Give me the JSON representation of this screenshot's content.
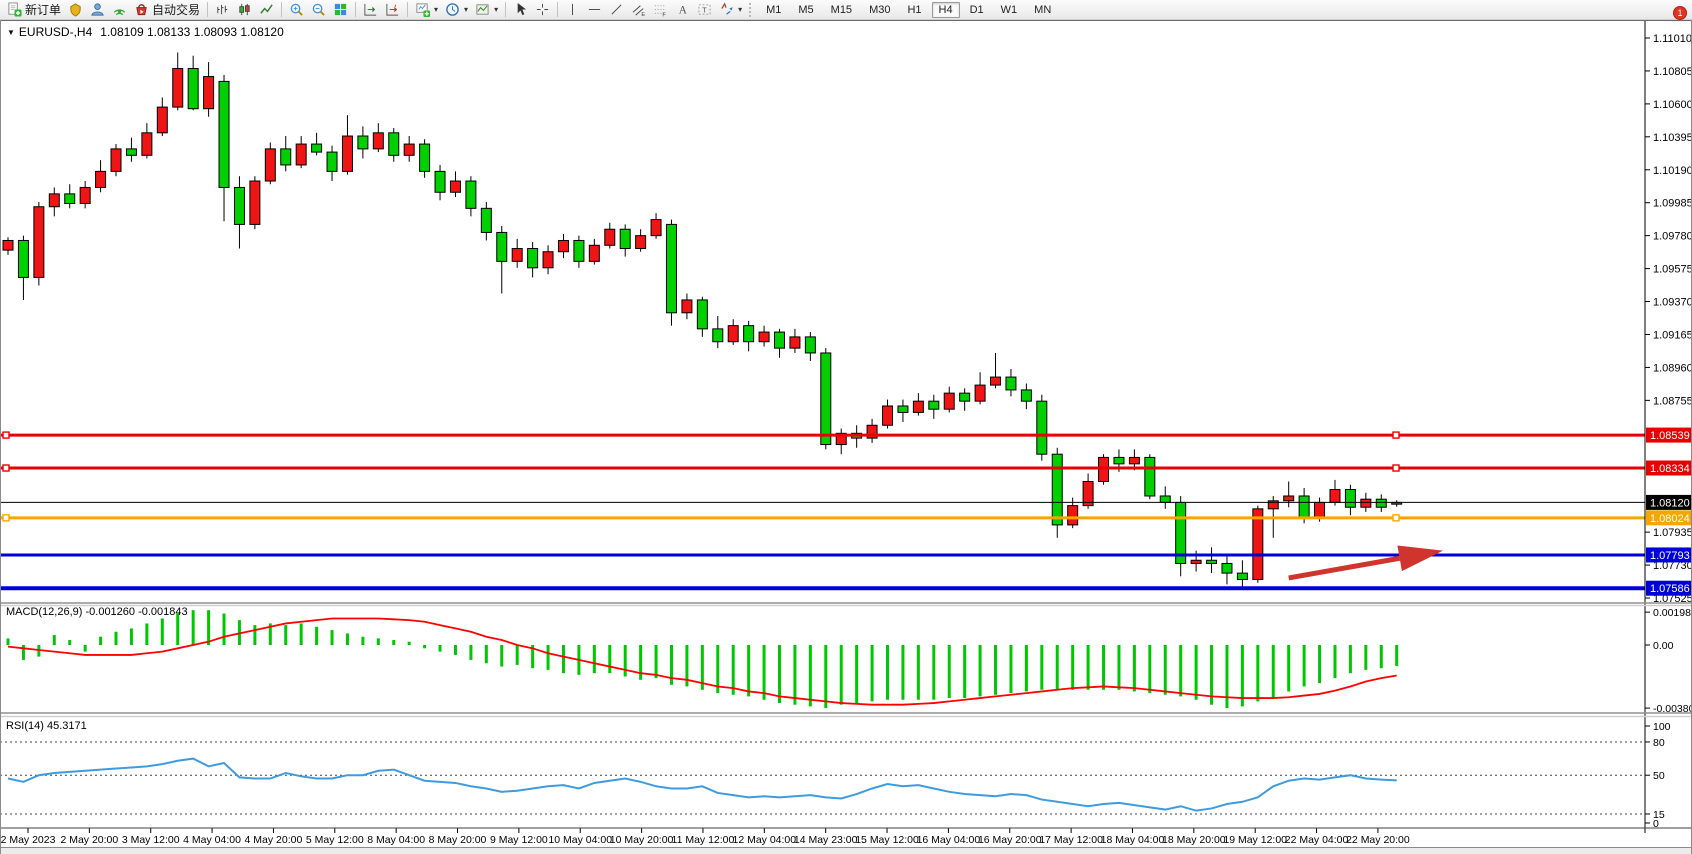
{
  "toolbar": {
    "groups": [
      {
        "items": [
          {
            "name": "new-order-button",
            "icon": "new-order-icon",
            "label": "新订单"
          },
          {
            "name": "market-button",
            "icon": "market-icon"
          },
          {
            "name": "metaeditor-button",
            "icon": "metaeditor-icon"
          },
          {
            "name": "signals-button",
            "icon": "signals-icon"
          },
          {
            "name": "autotrading-button",
            "icon": "autotrading-icon",
            "label": "自动交易"
          }
        ]
      },
      {
        "items": [
          {
            "name": "bar-chart-button",
            "icon": "bar-chart-icon"
          },
          {
            "name": "candlestick-button",
            "icon": "candles-icon"
          },
          {
            "name": "line-chart-button",
            "icon": "line-chart-icon"
          }
        ]
      },
      {
        "items": [
          {
            "name": "zoom-in-button",
            "icon": "zoom-in-icon"
          },
          {
            "name": "zoom-out-button",
            "icon": "zoom-out-icon"
          },
          {
            "name": "tile-windows-button",
            "icon": "tile-windows-icon"
          }
        ]
      },
      {
        "items": [
          {
            "name": "auto-scroll-button",
            "icon": "auto-scroll-icon"
          },
          {
            "name": "chart-shift-button",
            "icon": "chart-shift-icon"
          }
        ]
      },
      {
        "items": [
          {
            "name": "new-chart-button",
            "icon": "new-chart-icon",
            "dropdown": true
          },
          {
            "name": "periods-button",
            "icon": "periods-icon",
            "dropdown": true
          },
          {
            "name": "templates-button",
            "icon": "template-icon",
            "dropdown": true
          }
        ]
      },
      {
        "items": [
          {
            "name": "cursor-button",
            "icon": "cursor-icon"
          },
          {
            "name": "crosshair-button",
            "icon": "crosshair-icon"
          }
        ]
      },
      {
        "items": [
          {
            "name": "vertical-line-button",
            "icon": "vline-icon"
          },
          {
            "name": "horizontal-line-button",
            "icon": "hline-icon"
          },
          {
            "name": "trendline-button",
            "icon": "trendline-icon"
          },
          {
            "name": "equidistant-channel-button",
            "icon": "channel-icon"
          },
          {
            "name": "fibonacci-button",
            "icon": "fibo-icon"
          },
          {
            "name": "text-button",
            "icon": "text-icon"
          },
          {
            "name": "text-label-button",
            "icon": "textlabel-icon"
          },
          {
            "name": "arrows-button",
            "icon": "arrows-icon",
            "dropdown": true
          }
        ]
      }
    ],
    "timeframes": [
      "M1",
      "M5",
      "M15",
      "M30",
      "H1",
      "H4",
      "D1",
      "W1",
      "MN"
    ],
    "active_timeframe": "H4",
    "right_icons": [
      {
        "name": "search-button",
        "icon": "search-icon"
      },
      {
        "name": "chat-button",
        "icon": "chat-icon",
        "badge": "1"
      }
    ]
  },
  "chart": {
    "symbol_period": "EURUSD-,H4",
    "ohlc_text": "1.08109 1.08133 1.08093 1.08120",
    "collapse_glyph": "▼"
  },
  "indicators": {
    "macd": {
      "title": "MACD(12,26,9)",
      "values": "-0.001260 -0.001843"
    },
    "rsi": {
      "title": "RSI(14)",
      "value": "45.3171"
    }
  },
  "chart_data": {
    "type": "candlestick",
    "symbol": "EURUSD-",
    "timeframe": "H4",
    "start_time": "2 May 2023 00:00",
    "last_ohlc": [
      1.08109,
      1.08133,
      1.08093,
      1.0812
    ],
    "price_ticks": [
      1.1101,
      1.10805,
      1.106,
      1.10395,
      1.1019,
      1.09985,
      1.0978,
      1.09575,
      1.0937,
      1.09165,
      1.0896,
      1.08755,
      1.07935,
      1.0773,
      1.07525
    ],
    "levels": [
      {
        "price": 1.08539,
        "label": "1.08539",
        "color": "#e60000",
        "width": 3,
        "handles": true
      },
      {
        "price": 1.08334,
        "label": "1.08334",
        "color": "#e60000",
        "width": 3,
        "handles": true
      },
      {
        "price": 1.0812,
        "label": "1.08120",
        "color": "#000000",
        "width": 1,
        "handles": false
      },
      {
        "price": 1.08024,
        "label": "1.08024",
        "color": "#f7a600",
        "width": 3,
        "handles": true
      },
      {
        "price": 1.07793,
        "label": "1.07793",
        "color": "#0000d8",
        "width": 3,
        "handles": false
      },
      {
        "price": 1.07586,
        "label": "1.07586",
        "color": "#0000d8",
        "width": 4,
        "handles": false
      }
    ],
    "candles": [
      [
        1.0969,
        1.0977,
        1.0966,
        1.0975
      ],
      [
        1.0975,
        1.0978,
        1.0938,
        1.0952
      ],
      [
        1.0952,
        1.0999,
        1.0947,
        1.0996
      ],
      [
        1.0996,
        1.1008,
        1.099,
        1.1004
      ],
      [
        1.1004,
        1.101,
        1.0995,
        1.0998
      ],
      [
        1.0998,
        1.1012,
        1.0995,
        1.1008
      ],
      [
        1.1008,
        1.1025,
        1.1005,
        1.1018
      ],
      [
        1.1018,
        1.1035,
        1.1015,
        1.1032
      ],
      [
        1.1032,
        1.1039,
        1.1024,
        1.1028
      ],
      [
        1.1028,
        1.1048,
        1.1026,
        1.1042
      ],
      [
        1.1042,
        1.1064,
        1.104,
        1.1058
      ],
      [
        1.1058,
        1.1092,
        1.1056,
        1.1082
      ],
      [
        1.1082,
        1.109,
        1.1056,
        1.1057
      ],
      [
        1.1057,
        1.1086,
        1.1052,
        1.1077
      ],
      [
        1.1074,
        1.1078,
        1.0987,
        1.1008
      ],
      [
        1.1008,
        1.1015,
        1.097,
        1.0985
      ],
      [
        1.0985,
        1.1015,
        1.0982,
        1.1012
      ],
      [
        1.1012,
        1.1036,
        1.101,
        1.1032
      ],
      [
        1.1032,
        1.104,
        1.1018,
        1.1022
      ],
      [
        1.1022,
        1.104,
        1.102,
        1.1035
      ],
      [
        1.1035,
        1.1042,
        1.1028,
        1.103
      ],
      [
        1.103,
        1.1034,
        1.1012,
        1.1018
      ],
      [
        1.1018,
        1.1053,
        1.1016,
        1.104
      ],
      [
        1.104,
        1.1046,
        1.1026,
        1.1032
      ],
      [
        1.1032,
        1.1048,
        1.103,
        1.1042
      ],
      [
        1.1042,
        1.1045,
        1.1024,
        1.1028
      ],
      [
        1.1028,
        1.104,
        1.1024,
        1.1035
      ],
      [
        1.1035,
        1.1038,
        1.1014,
        1.1018
      ],
      [
        1.1018,
        1.1022,
        1.1,
        1.1005
      ],
      [
        1.1005,
        1.1018,
        1.1002,
        1.1012
      ],
      [
        1.1012,
        1.1015,
        1.099,
        1.0995
      ],
      [
        1.0995,
        1.0999,
        1.0975,
        1.098
      ],
      [
        1.098,
        1.0984,
        1.0942,
        1.0962
      ],
      [
        1.0962,
        1.0976,
        1.0958,
        1.097
      ],
      [
        1.097,
        1.0974,
        1.0952,
        1.0958
      ],
      [
        1.0958,
        1.0972,
        1.0954,
        1.0968
      ],
      [
        1.0968,
        1.0979,
        1.0964,
        1.0975
      ],
      [
        1.0975,
        1.0978,
        1.0958,
        1.0962
      ],
      [
        1.0962,
        1.0976,
        1.096,
        1.0972
      ],
      [
        1.0972,
        1.0986,
        1.097,
        1.0982
      ],
      [
        1.0982,
        1.0985,
        1.0965,
        1.097
      ],
      [
        1.097,
        1.0982,
        1.0968,
        1.0978
      ],
      [
        1.0978,
        1.0992,
        1.0976,
        1.0988
      ],
      [
        1.0985,
        1.0988,
        1.0922,
        1.093
      ],
      [
        1.093,
        1.0942,
        1.0926,
        1.0938
      ],
      [
        1.0938,
        1.094,
        1.0915,
        1.092
      ],
      [
        1.092,
        1.0928,
        1.0908,
        1.0912
      ],
      [
        1.0912,
        1.0926,
        1.091,
        1.0922
      ],
      [
        1.0922,
        1.0925,
        1.0906,
        1.0912
      ],
      [
        1.0912,
        1.0922,
        1.0909,
        1.0918
      ],
      [
        1.0918,
        1.092,
        1.0902,
        1.0908
      ],
      [
        1.0908,
        1.092,
        1.0905,
        1.0915
      ],
      [
        1.0915,
        1.0918,
        1.09,
        1.0905
      ],
      [
        1.0905,
        1.0908,
        1.0845,
        1.0848
      ],
      [
        1.0848,
        1.0858,
        1.0842,
        1.0855
      ],
      [
        1.0855,
        1.086,
        1.0846,
        1.0852
      ],
      [
        1.0852,
        1.0864,
        1.0849,
        1.086
      ],
      [
        1.086,
        1.0876,
        1.0858,
        1.0872
      ],
      [
        1.0872,
        1.0876,
        1.0862,
        1.0868
      ],
      [
        1.0868,
        1.088,
        1.0866,
        1.0875
      ],
      [
        1.0875,
        1.0879,
        1.0864,
        1.087
      ],
      [
        1.087,
        1.0884,
        1.0868,
        1.088
      ],
      [
        1.088,
        1.0883,
        1.0869,
        1.0875
      ],
      [
        1.0875,
        1.0893,
        1.0873,
        1.0885
      ],
      [
        1.0885,
        1.0905,
        1.0883,
        1.089
      ],
      [
        1.089,
        1.0895,
        1.0878,
        1.0882
      ],
      [
        1.0882,
        1.0886,
        1.087,
        1.0875
      ],
      [
        1.0875,
        1.0879,
        1.0838,
        1.0842
      ],
      [
        1.0842,
        1.0846,
        1.079,
        1.0798
      ],
      [
        1.0798,
        1.0815,
        1.0796,
        1.081
      ],
      [
        1.081,
        1.083,
        1.0808,
        1.0825
      ],
      [
        1.0825,
        1.0842,
        1.0823,
        1.084
      ],
      [
        1.084,
        1.0845,
        1.0831,
        1.0836
      ],
      [
        1.0836,
        1.0845,
        1.0832,
        1.084
      ],
      [
        1.084,
        1.0842,
        1.0814,
        1.0816
      ],
      [
        1.0816,
        1.0822,
        1.0808,
        1.0812
      ],
      [
        1.0812,
        1.0816,
        1.0766,
        1.0774
      ],
      [
        1.0774,
        1.0782,
        1.0769,
        1.0776
      ],
      [
        1.0776,
        1.0784,
        1.0768,
        1.0774
      ],
      [
        1.0774,
        1.0779,
        1.0761,
        1.0768
      ],
      [
        1.0768,
        1.0776,
        1.0758,
        1.0764
      ],
      [
        1.0764,
        1.081,
        1.0762,
        1.0808
      ],
      [
        1.0808,
        1.0816,
        1.079,
        1.0813
      ],
      [
        1.0813,
        1.0825,
        1.0809,
        1.0816
      ],
      [
        1.0816,
        1.0821,
        1.0799,
        1.0802
      ],
      [
        1.0802,
        1.0815,
        1.08,
        1.0812
      ],
      [
        1.0812,
        1.0826,
        1.081,
        1.082
      ],
      [
        1.082,
        1.0823,
        1.0804,
        1.0809
      ],
      [
        1.0809,
        1.0818,
        1.0806,
        1.0814
      ],
      [
        1.0814,
        1.0817,
        1.0806,
        1.0809
      ],
      [
        1.08109,
        1.08133,
        1.08093,
        1.0812
      ]
    ],
    "macd": {
      "histogram_x1e4": [
        4,
        -9,
        -7,
        6,
        3,
        -4,
        5,
        8,
        10,
        13,
        16,
        19,
        21,
        21,
        19,
        15,
        12,
        13,
        12,
        13,
        11,
        9,
        7,
        5,
        4,
        3,
        2,
        -2,
        -4,
        -6,
        -9,
        -11,
        -13,
        -12,
        -14,
        -15,
        -17,
        -18,
        -17,
        -17,
        -19,
        -21,
        -20,
        -24,
        -25,
        -27,
        -29,
        -30,
        -31,
        -33,
        -35,
        -36,
        -37,
        -38,
        -36,
        -35,
        -34,
        -33,
        -33,
        -33,
        -33,
        -32,
        -32,
        -31,
        -30,
        -29,
        -28,
        -27,
        -27,
        -27,
        -27,
        -27,
        -27,
        -28,
        -29,
        -30,
        -31,
        -33,
        -36,
        -38,
        -37,
        -34,
        -32,
        -28,
        -25,
        -23,
        -20,
        -17,
        -15,
        -14,
        -12.6
      ],
      "signal_x1e4": [
        -1,
        -2,
        -3,
        -4,
        -5,
        -6,
        -6,
        -6,
        -6,
        -5,
        -4,
        -2,
        0,
        2,
        5,
        7,
        9,
        11,
        13,
        14,
        15,
        16,
        16,
        16,
        16,
        15.5,
        15,
        14,
        12,
        10,
        8,
        5,
        3,
        0,
        -2,
        -5,
        -7,
        -9,
        -11,
        -13,
        -15,
        -17,
        -18,
        -20,
        -21,
        -23,
        -25,
        -26,
        -28,
        -29,
        -31,
        -32,
        -33,
        -34,
        -35,
        -35.5,
        -36,
        -36,
        -36,
        -35.5,
        -35,
        -34,
        -33,
        -32,
        -31,
        -30,
        -29,
        -28,
        -27,
        -26,
        -25.5,
        -25,
        -25.5,
        -26,
        -27,
        -28,
        -29,
        -30,
        -31,
        -31.5,
        -32,
        -32,
        -32,
        -31.5,
        -30.5,
        -29.5,
        -27.5,
        -25,
        -22,
        -20,
        -18.4
      ],
      "axis": [
        {
          "value": 0.001982,
          "label": "0.001982"
        },
        {
          "value": 0,
          "label": "0.00"
        },
        {
          "value": -0.003804,
          "label": "-0.003804"
        }
      ]
    },
    "rsi": {
      "values": [
        47,
        44,
        50,
        52,
        53,
        54,
        55,
        56,
        57,
        58,
        60,
        63,
        65,
        58,
        61,
        48,
        47,
        47,
        52,
        49,
        47,
        47,
        50,
        50,
        54,
        55,
        50,
        45,
        44,
        43,
        40,
        38,
        35,
        36,
        38,
        40,
        41,
        38,
        43,
        45,
        47,
        44,
        40,
        38,
        38,
        40,
        34,
        32,
        30,
        31,
        30,
        31,
        32,
        30,
        29,
        33,
        38,
        42,
        40,
        41,
        38,
        35,
        33,
        32,
        31,
        33,
        32,
        28,
        26,
        24,
        22,
        24,
        25,
        23,
        21,
        19,
        22,
        18,
        20,
        24,
        26,
        30,
        40,
        45,
        47,
        46,
        48,
        50,
        47,
        46,
        45.3
      ],
      "axis": [
        {
          "value": 100,
          "label": "100",
          "dashed": false
        },
        {
          "value": 80,
          "label": "80",
          "dashed": true
        },
        {
          "value": 50,
          "label": "50",
          "dashed": true
        },
        {
          "value": 15,
          "label": "15",
          "dashed": true
        },
        {
          "value": 0,
          "label": "0",
          "dashed": false
        }
      ]
    },
    "time_labels": [
      "2 May 2023",
      "2 May 20:00",
      "3 May 12:00",
      "4 May 04:00",
      "4 May 20:00",
      "5 May 12:00",
      "8 May 04:00",
      "8 May 20:00",
      "9 May 12:00",
      "10 May 04:00",
      "10 May 20:00",
      "11 May 12:00",
      "12 May 04:00",
      "14 May 23:00",
      "15 May 12:00",
      "16 May 04:00",
      "16 May 20:00",
      "17 May 12:00",
      "18 May 04:00",
      "18 May 20:00",
      "19 May 12:00",
      "22 May 04:00",
      "22 May 20:00"
    ],
    "annotations": [
      {
        "type": "arrow",
        "from_bar": 83,
        "from_price": 1.0765,
        "to_bar": 93,
        "to_price": 1.0782,
        "color": "#d0342c"
      }
    ],
    "colors": {
      "bull": "#ef1515",
      "bear": "#00d000",
      "wick": "#000000",
      "macd_hist": "#00c800",
      "macd_signal": "#ff0000",
      "rsi_line": "#3f9be0",
      "axis_text": "#000000",
      "background": "#ffffff",
      "label_text": "#ffffff"
    }
  }
}
